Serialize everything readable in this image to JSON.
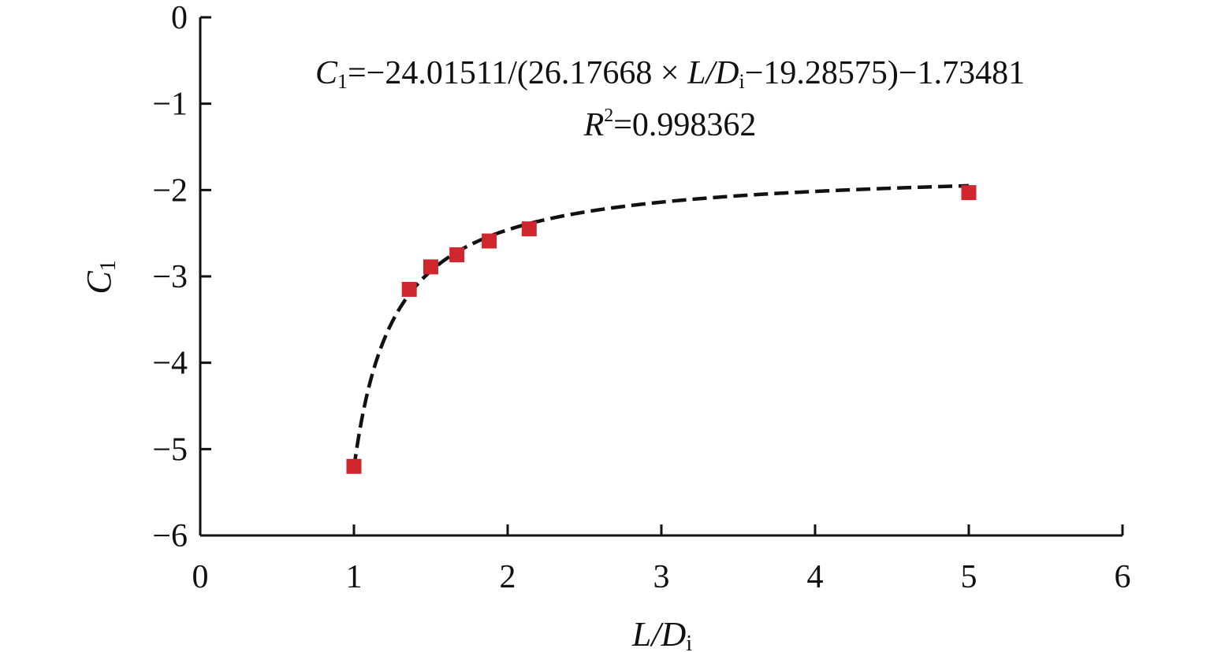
{
  "chart_data": {
    "type": "scatter",
    "xlabel": {
      "main": "L/D",
      "sub": "i"
    },
    "ylabel": {
      "main": "C",
      "sub": "1"
    },
    "xlim": [
      0,
      6
    ],
    "ylim": [
      -6,
      0
    ],
    "x_ticks": [
      "0",
      "1",
      "2",
      "3",
      "4",
      "5",
      "6"
    ],
    "y_ticks": [
      "0",
      "−1",
      "−2",
      "−3",
      "−4",
      "−5",
      "−6"
    ],
    "grid": false,
    "legend": "none",
    "series": [
      {
        "values": [
          {
            "x": 1.0,
            "y": -5.2
          },
          {
            "x": 1.36,
            "y": -3.15
          },
          {
            "x": 1.5,
            "y": -2.89
          },
          {
            "x": 1.67,
            "y": -2.75
          },
          {
            "x": 1.88,
            "y": -2.59
          },
          {
            "x": 2.14,
            "y": -2.45
          },
          {
            "x": 5.0,
            "y": -2.03
          }
        ],
        "color": "#d0262e",
        "marker": "square"
      }
    ],
    "fit": {
      "a": -24.01511,
      "b": 26.17668,
      "c": -19.28575,
      "d": -1.73481,
      "x_range": [
        1.0,
        5.0
      ],
      "color": "#111111",
      "style": "dashed"
    },
    "annotations": {
      "equation": {
        "c_main": "C",
        "c_sub": "1",
        "part1": "=−24.01511/(26.17668 × ",
        "ld_main": "L/D",
        "ld_sub": "i",
        "part2": "−19.28575)−1.73481"
      },
      "r_squared": {
        "r_main": "R",
        "r_sup": "2",
        "value": "=0.998362"
      }
    }
  }
}
